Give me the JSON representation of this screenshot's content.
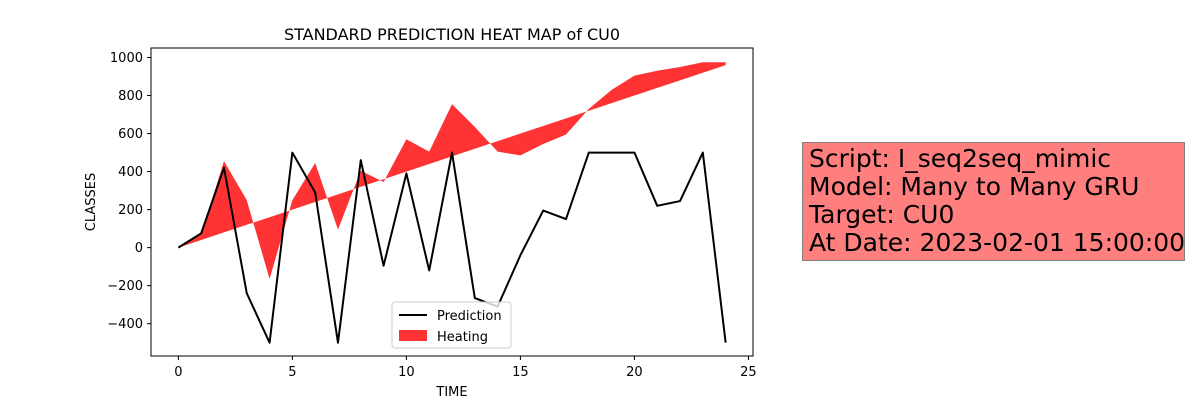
{
  "chart_data": {
    "type": "line",
    "title": "STANDARD PREDICTION HEAT MAP of CU0",
    "xlabel": "TIME",
    "ylabel": "CLASSES",
    "xlim": [
      -1.2,
      25.2
    ],
    "ylim": [
      -570,
      1050
    ],
    "xticks": [
      0,
      5,
      10,
      15,
      20,
      25
    ],
    "xtick_labels": [
      "0",
      "5",
      "10",
      "15",
      "20",
      "25"
    ],
    "yticks": [
      -400,
      -200,
      0,
      200,
      400,
      600,
      800,
      1000
    ],
    "ytick_labels": [
      "−400",
      "−200",
      "0",
      "200",
      "400",
      "600",
      "800",
      "1000"
    ],
    "x": [
      0,
      1,
      2,
      3,
      4,
      5,
      6,
      7,
      8,
      9,
      10,
      11,
      12,
      13,
      14,
      15,
      16,
      17,
      18,
      19,
      20,
      21,
      22,
      23,
      24
    ],
    "series": [
      {
        "name": "Prediction",
        "kind": "line",
        "color": "#000000",
        "values": [
          0,
          75,
          420,
          -240,
          -500,
          500,
          290,
          -500,
          460,
          -95,
          390,
          -120,
          500,
          -265,
          -310,
          -40,
          195,
          150,
          500,
          500,
          500,
          220,
          245,
          500,
          -500
        ]
      },
      {
        "name": "Heating",
        "kind": "fill_between",
        "color": "#ff0000",
        "baseline": [
          0,
          40,
          80,
          120,
          160,
          200,
          240,
          280,
          320,
          360,
          400,
          440,
          480,
          520,
          560,
          600,
          640,
          680,
          720,
          760,
          800,
          840,
          880,
          920,
          960
        ],
        "values": [
          0,
          70,
          455,
          250,
          -165,
          250,
          445,
          95,
          405,
          345,
          570,
          505,
          755,
          635,
          505,
          485,
          545,
          595,
          730,
          830,
          905,
          930,
          950,
          975,
          975
        ]
      }
    ],
    "legend_position": "lower center"
  },
  "info_box": {
    "lines": [
      "Script: I_seq2seq_mimic",
      "Model: Many to Many GRU",
      "Target: CU0",
      "At Date: 2023-02-01 15:00:00"
    ],
    "background": "#ff7f7f"
  }
}
